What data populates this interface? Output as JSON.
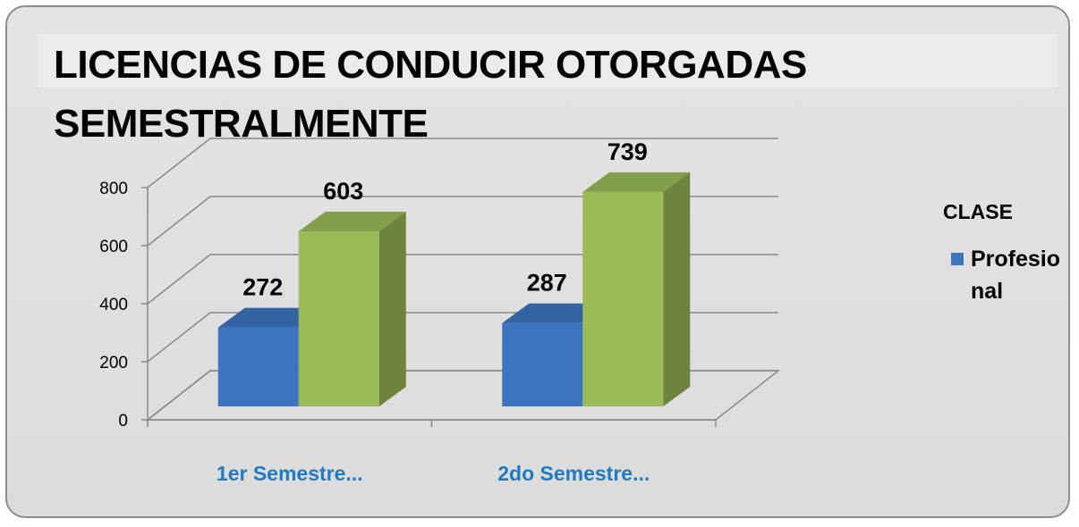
{
  "chart_data": {
    "type": "bar3d",
    "title": "LICENCIAS DE CONDUCIR OTORGADAS SEMESTRALMENTE",
    "legend_title": "CLASE",
    "categories": [
      "1er Semestre...",
      "2do Semestre..."
    ],
    "series": [
      {
        "name": "Profesional",
        "color": "#3d74c0",
        "values": [
          272,
          287
        ]
      },
      {
        "color": "#9bbb59",
        "values": [
          603,
          739
        ]
      }
    ],
    "ylim": [
      0,
      800
    ],
    "yticks": [
      0,
      200,
      400,
      600,
      800
    ],
    "grid": true
  }
}
